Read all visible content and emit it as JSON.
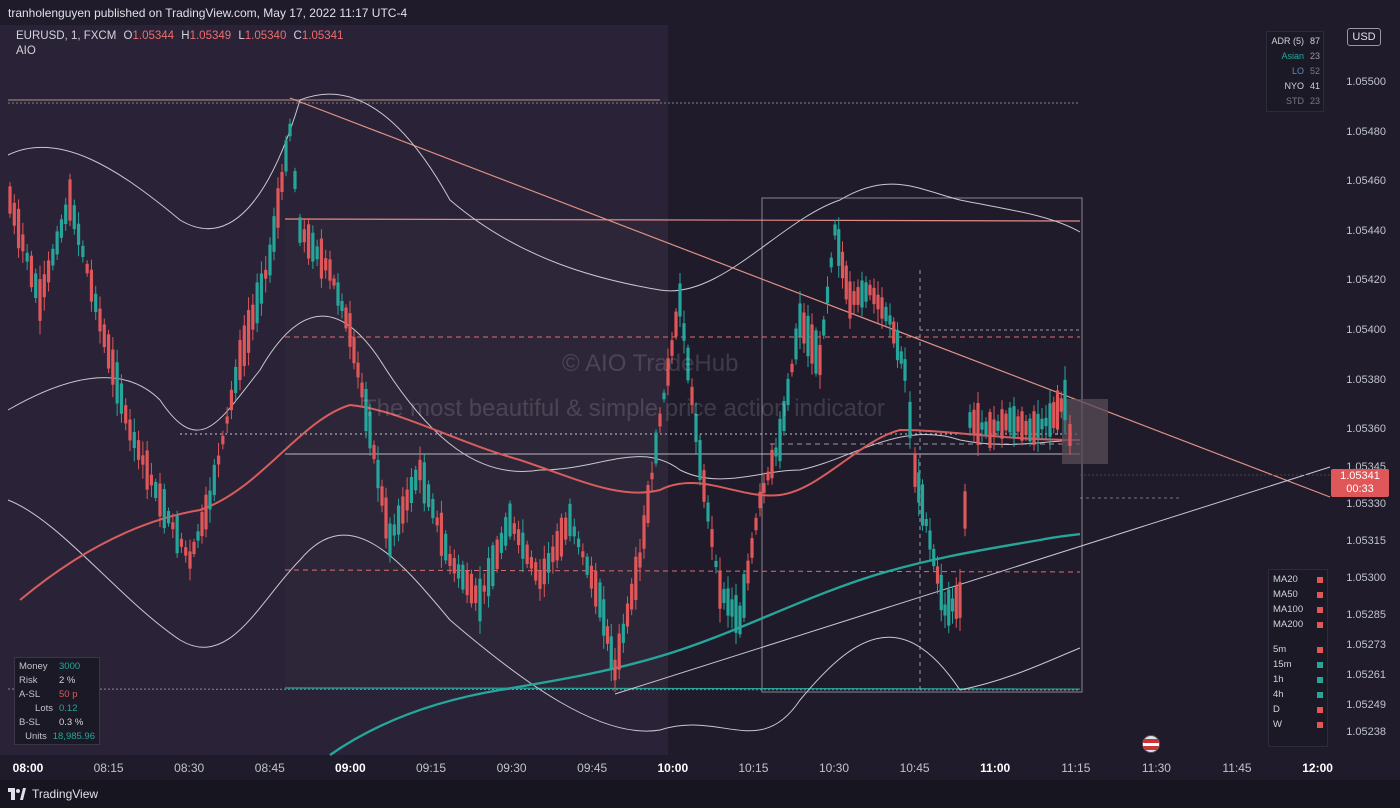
{
  "publish_text": "tranholenguyen published on TradingView.com, May 17, 2022 11:17 UTC-4",
  "symbol": {
    "title": "EURUSD, 1, FXCM",
    "o_label": "O",
    "o": "1.05344",
    "h_label": "H",
    "h": "1.05349",
    "l_label": "L",
    "l": "1.05340",
    "c_label": "C",
    "c": "1.05341"
  },
  "indicator_name": "AIO",
  "currency_button": "USD",
  "adr_table": [
    {
      "label": "ADR (5)",
      "value": "87"
    },
    {
      "label": "Asian",
      "value": "23"
    },
    {
      "label": "LO",
      "value": "52"
    },
    {
      "label": "NYO",
      "value": "41"
    },
    {
      "label": "STD",
      "value": "23"
    }
  ],
  "price_axis": [
    "1.05500",
    "1.05480",
    "1.05460",
    "1.05440",
    "1.05420",
    "1.05400",
    "1.05380",
    "1.05360",
    "1.05345",
    "1.05330",
    "1.05315",
    "1.05300",
    "1.05285",
    "1.05273",
    "1.05261",
    "1.05249",
    "1.05238"
  ],
  "current_price": {
    "price": "1.05341",
    "countdown": "00:33"
  },
  "time_axis": [
    {
      "label": "08:00",
      "bold": true
    },
    {
      "label": "08:15",
      "bold": false
    },
    {
      "label": "08:30",
      "bold": false
    },
    {
      "label": "08:45",
      "bold": false
    },
    {
      "label": "09:00",
      "bold": true
    },
    {
      "label": "09:15",
      "bold": false
    },
    {
      "label": "09:30",
      "bold": false
    },
    {
      "label": "09:45",
      "bold": false
    },
    {
      "label": "10:00",
      "bold": true
    },
    {
      "label": "10:15",
      "bold": false
    },
    {
      "label": "10:30",
      "bold": false
    },
    {
      "label": "10:45",
      "bold": false
    },
    {
      "label": "11:00",
      "bold": true
    },
    {
      "label": "11:15",
      "bold": false
    },
    {
      "label": "11:30",
      "bold": false
    },
    {
      "label": "11:45",
      "bold": false
    },
    {
      "label": "12:00",
      "bold": true
    }
  ],
  "watermark": {
    "line1": "© AIO TradeHub",
    "line2": "The most beautiful & simple price action indicator"
  },
  "ma_legend": [
    {
      "label": "MA20",
      "color": "#e0575a"
    },
    {
      "label": "MA50",
      "color": "#e0575a"
    },
    {
      "label": "MA100",
      "color": "#e0575a"
    },
    {
      "label": "MA200",
      "color": "#e0575a"
    }
  ],
  "tf_legend": [
    {
      "label": "5m",
      "color": "#e0575a"
    },
    {
      "label": "15m",
      "color": "#26a69a"
    },
    {
      "label": "1h",
      "color": "#26a69a"
    },
    {
      "label": "4h",
      "color": "#26a69a"
    },
    {
      "label": "D",
      "color": "#e0575a"
    },
    {
      "label": "W",
      "color": "#e0575a"
    }
  ],
  "money_panel": [
    {
      "label": "Money",
      "value": "3000",
      "color": "#26a69a"
    },
    {
      "label": "Risk",
      "value": "2 %",
      "color": "#d1d4dc"
    },
    {
      "label": "A-SL",
      "value": "50 p",
      "color": "#e0575a"
    },
    {
      "label": "Lots",
      "value": "0.12",
      "color": "#26a69a"
    },
    {
      "label": "B-SL",
      "value": "0.3 %",
      "color": "#d1d4dc"
    },
    {
      "label": "Units",
      "value": "18,985.96",
      "color": "#26a69a"
    }
  ],
  "brand": "TradingView",
  "colors": {
    "up": "#26a69a",
    "down": "#e0575a",
    "background": "#1f1b2a"
  }
}
